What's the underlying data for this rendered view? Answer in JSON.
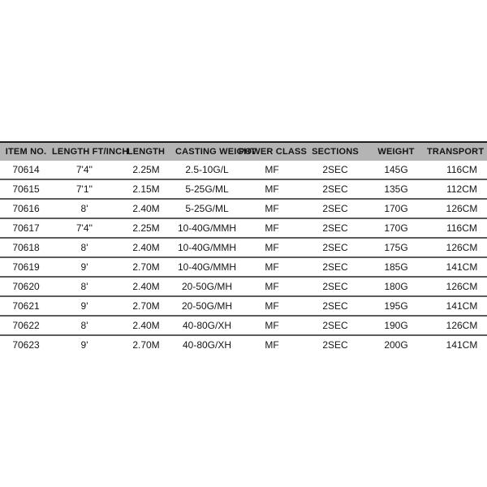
{
  "colors": {
    "page_background": "#ffffff",
    "header_background": "#b4b4b4",
    "header_text": "#141414",
    "cell_text": "#161616",
    "table_top_border": "#1e1e1e",
    "row_separator": "#5c5c5c"
  },
  "chart_data": {
    "type": "table",
    "title": "",
    "columns": [
      "ITEM NO.",
      "LENGTH FT/INCH",
      "LENGTH",
      "CASTING WEIGHT",
      "POWER CLASS",
      "SECTIONS",
      "WEIGHT",
      "TRANSPORT LENGTH"
    ],
    "rows": [
      [
        "70614",
        "7'4''",
        "2.25M",
        "2.5-10G/L",
        "MF",
        "2SEC",
        "145G",
        "116CM"
      ],
      [
        "70615",
        "7'1''",
        "2.15M",
        "5-25G/ML",
        "MF",
        "2SEC",
        "135G",
        "112CM"
      ],
      [
        "70616",
        "8'",
        "2.40M",
        "5-25G/ML",
        "MF",
        "2SEC",
        "170G",
        "126CM"
      ],
      [
        "70617",
        "7'4''",
        "2.25M",
        "10-40G/MMH",
        "MF",
        "2SEC",
        "170G",
        "116CM"
      ],
      [
        "70618",
        "8'",
        "2.40M",
        "10-40G/MMH",
        "MF",
        "2SEC",
        "175G",
        "126CM"
      ],
      [
        "70619",
        "9'",
        "2.70M",
        "10-40G/MMH",
        "MF",
        "2SEC",
        "185G",
        "141CM"
      ],
      [
        "70620",
        "8'",
        "2.40M",
        "20-50G/MH",
        "MF",
        "2SEC",
        "180G",
        "126CM"
      ],
      [
        "70621",
        "9'",
        "2.70M",
        "20-50G/MH",
        "MF",
        "2SEC",
        "195G",
        "141CM"
      ],
      [
        "70622",
        "8'",
        "2.40M",
        "40-80G/XH",
        "MF",
        "2SEC",
        "190G",
        "126CM"
      ],
      [
        "70623",
        "9'",
        "2.70M",
        "40-80G/XH",
        "MF",
        "2SEC",
        "200G",
        "141CM"
      ]
    ],
    "layout": {
      "header_row": true,
      "right_edge_clipped": true,
      "rows_visible": 10
    }
  }
}
